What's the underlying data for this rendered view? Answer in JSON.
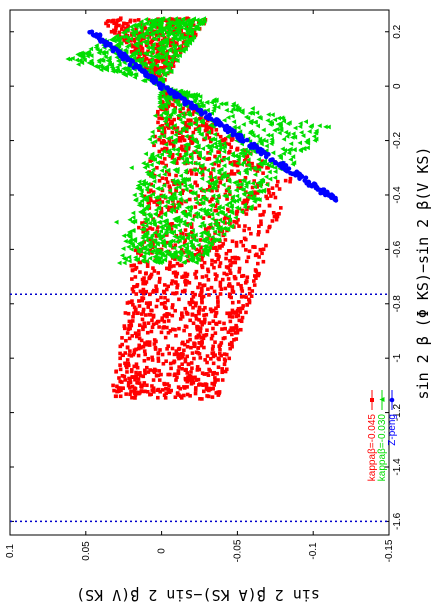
{
  "chart_data": {
    "type": "scatter",
    "orientation": "rotated 90° counter-clockwise (x axis runs vertically on the right, y axis runs horizontally at the bottom)",
    "xlabel": "sin 2 β (Φ KS)−sin 2 β(V KS)",
    "ylabel": "sin 2 β(A KS)−sin 2 β(V KS)",
    "xlim": [
      -1.65,
      0.28
    ],
    "ylim": [
      -0.15,
      0.1
    ],
    "x_ticks": [
      "0.2",
      "0",
      "-0.2",
      "-0.4",
      "-0.6",
      "-0.8",
      "-1",
      "-1.2",
      "-1.4",
      "-1.6"
    ],
    "y_ticks": [
      "0.1",
      "0.05",
      "0",
      "-0.05",
      "-0.1",
      "-0.15"
    ],
    "grid": false,
    "legend_position": "bottom-right",
    "reference_lines": [
      {
        "axis": "x",
        "value": -0.765,
        "style": "dotted",
        "color": "#0000cc"
      },
      {
        "axis": "x",
        "value": -1.6,
        "style": "dotted",
        "color": "#0000cc"
      }
    ],
    "series": [
      {
        "name": "kappaβ=-0.045",
        "color": "#ff0000",
        "marker": "square",
        "description": "wedge of points spreading from the origin toward x≈-1.15 (y 0.02–0.035) and x≈-0.35 (y -0.08)",
        "envelope": {
          "apex": [
            0,
            0
          ],
          "upper_edge": [
            [
              0,
              0
            ],
            [
              -1.15,
              0.033
            ]
          ],
          "lower_edge": [
            [
              0,
              0
            ],
            [
              -0.35,
              -0.085
            ]
          ],
          "upper_branch": [
            [
              0,
              0
            ],
            [
              0.25,
              -0.03
            ],
            [
              0.25,
              0.04
            ],
            [
              0.2,
              0.037
            ]
          ]
        },
        "points": [
          [
            -1.14,
            0.03
          ],
          [
            -1.14,
            0.027
          ],
          [
            -1.1,
            0.032
          ],
          [
            -1.08,
            0.024
          ],
          [
            -1.05,
            0.03
          ],
          [
            -1.02,
            0.022
          ],
          [
            -0.98,
            0.018
          ],
          [
            -0.95,
            0.026
          ],
          [
            -0.9,
            0.015
          ],
          [
            -0.88,
            0.02
          ],
          [
            -0.84,
            0.008
          ],
          [
            -0.8,
            0.0
          ],
          [
            -0.78,
            0.012
          ],
          [
            -0.76,
            -0.01
          ],
          [
            -0.72,
            0.01
          ],
          [
            -0.7,
            -0.015
          ],
          [
            -0.66,
            0.02
          ],
          [
            -0.62,
            -0.022
          ],
          [
            -0.6,
            0.0
          ],
          [
            -0.56,
            -0.03
          ],
          [
            -0.52,
            0.015
          ],
          [
            -0.5,
            -0.045
          ],
          [
            -0.46,
            -0.05
          ],
          [
            -0.42,
            -0.055
          ],
          [
            -0.4,
            -0.06
          ],
          [
            -0.36,
            -0.07
          ],
          [
            -0.34,
            -0.085
          ],
          [
            -0.3,
            -0.06
          ],
          [
            -0.28,
            -0.05
          ],
          [
            -0.24,
            -0.045
          ],
          [
            -0.2,
            -0.04
          ],
          [
            -0.16,
            -0.03
          ],
          [
            -0.12,
            -0.025
          ],
          [
            -0.08,
            -0.018
          ],
          [
            -0.04,
            -0.01
          ],
          [
            0.22,
            0.03
          ],
          [
            0.24,
            0.035
          ],
          [
            0.2,
            0.033
          ],
          [
            0.18,
            -0.015
          ],
          [
            0.23,
            -0.028
          ],
          [
            0.14,
            -0.012
          ]
        ]
      },
      {
        "name": "kappaβ=-0.030",
        "color": "#00dd00",
        "marker": "triangle",
        "description": "wedge of points spreading from the origin toward x≈-0.65 (y 0.03) and x≈-0.15 (y -0.11)",
        "envelope": {
          "apex": [
            0,
            0
          ],
          "upper_edge": [
            [
              0,
              0
            ],
            [
              -0.65,
              0.028
            ]
          ],
          "lower_edge": [
            [
              0,
              0
            ],
            [
              -0.15,
              -0.11
            ]
          ],
          "upper_branch": [
            [
              0,
              0
            ],
            [
              0.1,
              0.06
            ],
            [
              0.25,
              0.0
            ],
            [
              0.25,
              -0.03
            ]
          ]
        },
        "points": [
          [
            -0.65,
            0.028
          ],
          [
            -0.6,
            0.02
          ],
          [
            -0.55,
            0.025
          ],
          [
            -0.5,
            0.03
          ],
          [
            -0.45,
            0.01
          ],
          [
            -0.4,
            0.018
          ],
          [
            -0.35,
            0.005
          ],
          [
            -0.3,
            0.02
          ],
          [
            -0.25,
            -0.01
          ],
          [
            -0.22,
            -0.03
          ],
          [
            -0.2,
            -0.05
          ],
          [
            -0.18,
            -0.07
          ],
          [
            -0.15,
            -0.11
          ],
          [
            -0.12,
            -0.08
          ],
          [
            -0.1,
            -0.06
          ],
          [
            -0.08,
            -0.05
          ],
          [
            -0.06,
            -0.03
          ],
          [
            -0.04,
            -0.02
          ],
          [
            0.06,
            0.04
          ],
          [
            0.08,
            0.055
          ],
          [
            0.1,
            0.062
          ],
          [
            0.12,
            0.05
          ],
          [
            0.15,
            0.03
          ],
          [
            0.18,
            0.015
          ],
          [
            0.2,
            0.0
          ],
          [
            0.22,
            -0.01
          ],
          [
            0.24,
            -0.02
          ]
        ]
      },
      {
        "name": "Z-peng",
        "color": "#0000ff",
        "marker": "circle",
        "description": "narrow band of points along a line from x≈0.2 (y≈0.045) to x≈-0.42 (y≈-0.115)",
        "envelope": {
          "line": [
            [
              0.2,
              0.045
            ],
            [
              0.0,
              0.0
            ],
            [
              -0.42,
              -0.115
            ]
          ]
        },
        "points": [
          [
            0.2,
            0.046
          ],
          [
            0.19,
            0.043
          ],
          [
            0.18,
            0.041
          ],
          [
            0.17,
            0.039
          ],
          [
            0.16,
            0.036
          ],
          [
            0.15,
            0.034
          ],
          [
            0.14,
            0.031
          ],
          [
            0.13,
            0.029
          ],
          [
            0.12,
            0.026
          ],
          [
            0.11,
            0.024
          ],
          [
            0.1,
            0.022
          ],
          [
            0.09,
            0.02
          ],
          [
            0.08,
            0.017
          ],
          [
            0.07,
            0.015
          ],
          [
            0.06,
            0.013
          ],
          [
            0.05,
            0.011
          ],
          [
            0.04,
            0.009
          ],
          [
            0.03,
            0.006
          ],
          [
            0.02,
            0.004
          ],
          [
            0.01,
            0.002
          ],
          [
            0.0,
            0.0
          ],
          [
            -0.02,
            -0.005
          ],
          [
            -0.04,
            -0.01
          ],
          [
            -0.06,
            -0.016
          ],
          [
            -0.08,
            -0.021
          ],
          [
            -0.1,
            -0.026
          ],
          [
            -0.12,
            -0.031
          ],
          [
            -0.14,
            -0.036
          ],
          [
            -0.16,
            -0.042
          ],
          [
            -0.18,
            -0.047
          ],
          [
            -0.2,
            -0.052
          ],
          [
            -0.22,
            -0.058
          ],
          [
            -0.24,
            -0.064
          ],
          [
            -0.26,
            -0.069
          ],
          [
            -0.28,
            -0.075
          ],
          [
            -0.3,
            -0.08
          ],
          [
            -0.32,
            -0.085
          ],
          [
            -0.34,
            -0.091
          ],
          [
            -0.36,
            -0.097
          ],
          [
            -0.38,
            -0.103
          ],
          [
            -0.4,
            -0.108
          ],
          [
            -0.41,
            -0.112
          ],
          [
            -0.42,
            -0.115
          ]
        ]
      }
    ]
  }
}
